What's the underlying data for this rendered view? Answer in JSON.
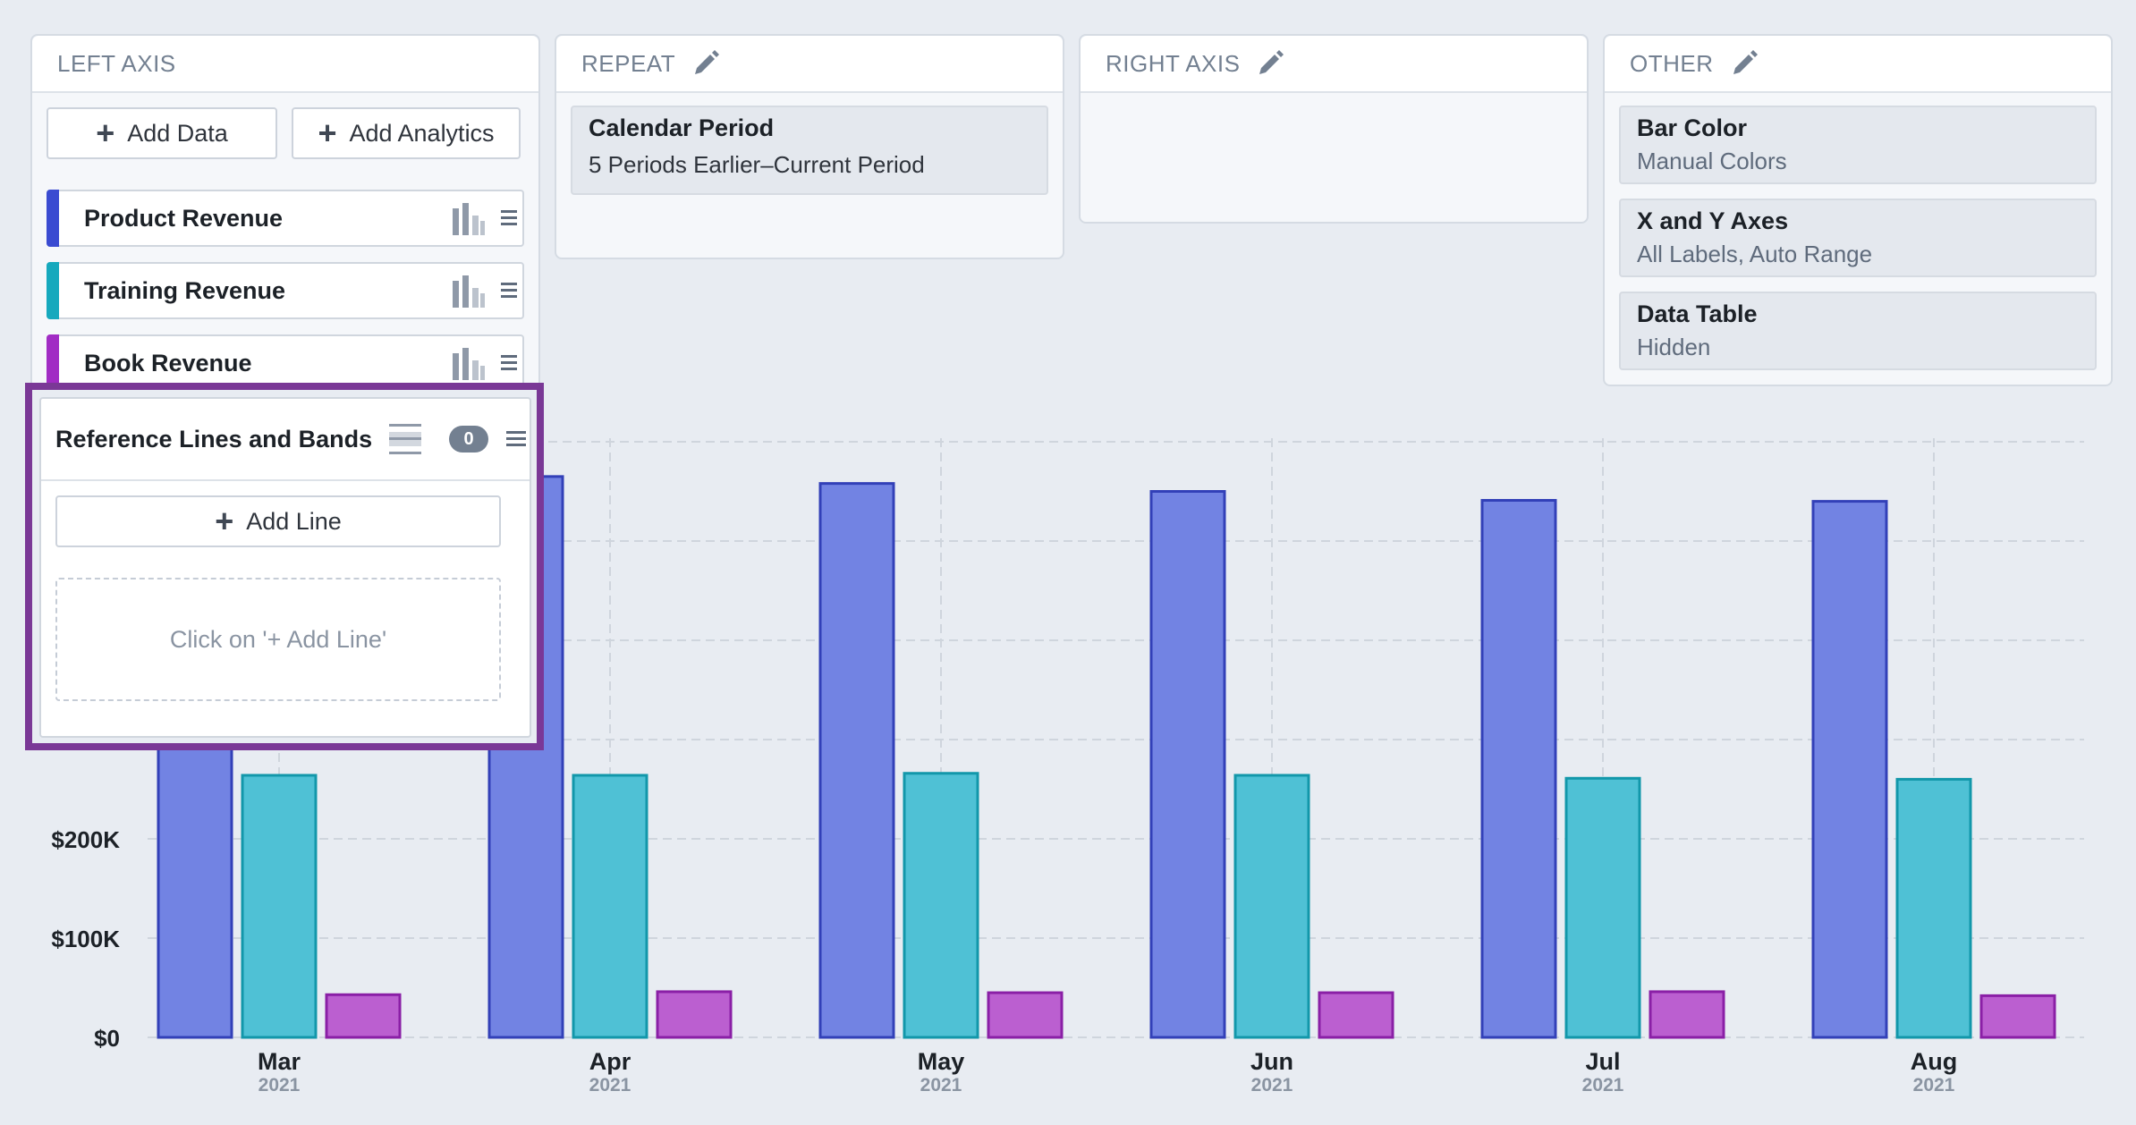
{
  "left_axis": {
    "title": "LEFT AXIS",
    "add_data_label": "Add Data",
    "add_analytics_label": "Add Analytics",
    "series": [
      {
        "label": "Product Revenue",
        "color": "#3a4bd1"
      },
      {
        "label": "Training Revenue",
        "color": "#16a9bd"
      },
      {
        "label": "Book Revenue",
        "color": "#a12cc4"
      }
    ]
  },
  "repeat": {
    "title": "REPEAT",
    "card_title": "Calendar Period",
    "card_value": "5 Periods Earlier–Current Period"
  },
  "right_axis": {
    "title": "RIGHT AXIS"
  },
  "other": {
    "title": "OTHER",
    "cards": [
      {
        "title": "Bar Color",
        "value": "Manual Colors"
      },
      {
        "title": "X and Y Axes",
        "value": "All Labels, Auto Range"
      },
      {
        "title": "Data Table",
        "value": "Hidden"
      }
    ]
  },
  "reference_lines": {
    "title": "Reference Lines and Bands",
    "count": "0",
    "add_line_label": "Add Line",
    "empty_hint": "Click on '+ Add Line'"
  },
  "chart_data": {
    "type": "bar",
    "categories": [
      "Mar",
      "Apr",
      "May",
      "Jun",
      "Jul",
      "Aug"
    ],
    "category_sublabels": [
      "2021",
      "2021",
      "2021",
      "2021",
      "2021",
      "2021"
    ],
    "y_ticks": [
      {
        "value": 0,
        "label": "$0"
      },
      {
        "value": 100000,
        "label": "$100K"
      },
      {
        "value": 200000,
        "label": "$200K"
      }
    ],
    "ylim": [
      0,
      600000
    ],
    "grid": true,
    "series": [
      {
        "name": "Product Revenue",
        "color": "#7283e3",
        "stroke": "#3240b8",
        "values": [
          565000,
          565000,
          558000,
          550000,
          541000,
          540000
        ]
      },
      {
        "name": "Training Revenue",
        "color": "#4fc1d5",
        "stroke": "#1297aa",
        "values": [
          264000,
          264000,
          266000,
          264000,
          261000,
          260000
        ]
      },
      {
        "name": "Book Revenue",
        "color": "#bb5fd0",
        "stroke": "#8a1fa6",
        "values": [
          43000,
          46000,
          45000,
          45000,
          46000,
          42000
        ]
      }
    ]
  }
}
